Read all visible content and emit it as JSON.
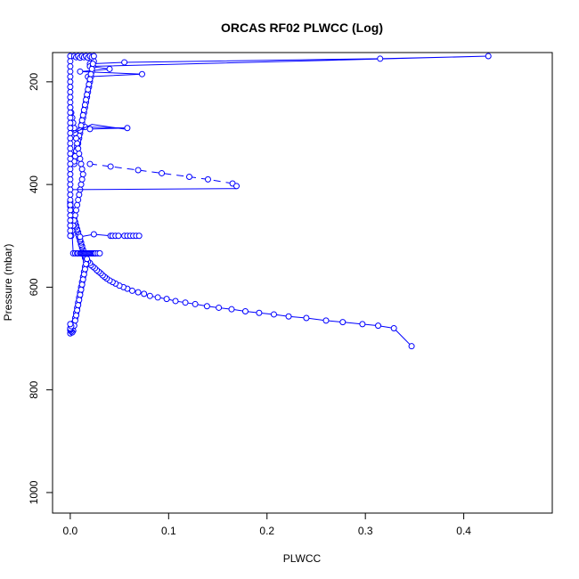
{
  "chart_data": {
    "type": "scatter",
    "title": "ORCAS RF02 PLWCC (Log)",
    "xlabel": "PLWCC",
    "ylabel": "Pressure (mbar)",
    "xlim": [
      -0.018,
      0.49
    ],
    "ylim": [
      1040,
      143
    ],
    "y_reversed": true,
    "x_ticks": [
      0.0,
      0.1,
      0.2,
      0.3,
      0.4
    ],
    "x_tick_labels": [
      "0.0",
      "0.1",
      "0.2",
      "0.3",
      "0.4"
    ],
    "y_ticks": [
      200,
      400,
      600,
      800,
      1000
    ],
    "y_tick_labels": [
      "200",
      "400",
      "600",
      "800",
      "1000"
    ],
    "grid": false,
    "legend": "none",
    "colors": {
      "series": "#0000ff",
      "axis": "#000000"
    },
    "series": [
      {
        "marker": "open-circle",
        "line": "solid",
        "x": [
          0.347,
          0.329,
          0.313,
          0.297,
          0.277,
          0.26,
          0.24,
          0.222,
          0.207,
          0.192,
          0.178,
          0.164,
          0.151,
          0.139,
          0.127,
          0.117,
          0.107,
          0.098,
          0.089,
          0.081,
          0.075,
          0.069,
          0.063,
          0.058,
          0.054,
          0.05,
          0.046,
          0.043,
          0.04,
          0.037,
          0.035,
          0.033,
          0.031,
          0.029,
          0.027,
          0.025,
          0.023,
          0.021,
          0.02,
          0.018,
          0.016,
          0.015,
          0.015,
          0.014,
          0.014,
          0.013,
          0.013,
          0.012,
          0.012,
          0.011,
          0.011,
          0.01,
          0.01,
          0.009,
          0.009,
          0.008,
          0.008,
          0.007,
          0.007,
          0.006,
          0.006,
          0.005,
          0.005,
          0.004,
          0.004,
          0.003,
          0.003,
          0.002,
          0.002,
          0.001,
          0.001,
          0.0,
          0.0,
          0.0,
          0.0,
          0.003,
          0.005,
          0.007,
          0.008,
          0.01,
          0.011,
          0.012,
          0.013,
          0.014,
          0.015,
          0.016,
          0.017,
          0.018,
          0.019,
          0.02,
          0.021,
          0.022,
          0.023,
          0.024,
          0.025,
          0.026,
          0.028,
          0.03
        ],
        "y": [
          715,
          680,
          675,
          672,
          668,
          665,
          660,
          657,
          653,
          650,
          647,
          643,
          640,
          637,
          633,
          630,
          627,
          623,
          620,
          617,
          613,
          610,
          607,
          603,
          600,
          597,
          593,
          590,
          587,
          583,
          580,
          577,
          573,
          570,
          567,
          563,
          560,
          557,
          553,
          550,
          547,
          543,
          540,
          537,
          534,
          530,
          527,
          523,
          520,
          517,
          513,
          510,
          507,
          503,
          500,
          497,
          493,
          490,
          487,
          483,
          480,
          477,
          473,
          470,
          467,
          463,
          460,
          457,
          453,
          450,
          447,
          443,
          440,
          437,
          434,
          534,
          534,
          534,
          534,
          534,
          534,
          534,
          534,
          534,
          534,
          534,
          534,
          534,
          534,
          534,
          534,
          534,
          534,
          534,
          534,
          534,
          534,
          534
        ]
      },
      {
        "marker": "open-circle",
        "line": "solid",
        "x": [
          0.0,
          0.001,
          0.003,
          0.005,
          0.006,
          0.007,
          0.008,
          0.009,
          0.01,
          0.011,
          0.012,
          0.013,
          0.014,
          0.015,
          0.016,
          0.017,
          0.016,
          0.015,
          0.014,
          0.013,
          0.012,
          0.011,
          0.01,
          0.009,
          0.008,
          0.007,
          0.006,
          0.005,
          0.004,
          0.003,
          0.002,
          0.001,
          0.0,
          0.0,
          0.0,
          0.001,
          0.0
        ],
        "y": [
          690,
          680,
          670,
          660,
          650,
          640,
          630,
          620,
          610,
          600,
          590,
          580,
          570,
          560,
          550,
          545,
          555,
          565,
          575,
          585,
          595,
          605,
          615,
          625,
          635,
          645,
          655,
          665,
          675,
          685,
          688,
          686,
          684,
          682,
          680,
          676,
          672
        ]
      },
      {
        "marker": "open-circle",
        "line": "dashed",
        "x": [
          0.02,
          0.041,
          0.069,
          0.093,
          0.121,
          0.14,
          0.165,
          0.169
        ],
        "y": [
          360,
          365,
          372,
          378,
          385,
          390,
          398,
          403
        ]
      },
      {
        "marker": "open-circle",
        "line": "solid",
        "x": [
          0.01,
          0.024,
          0.041,
          0.043,
          0.046,
          0.049,
          0.055,
          0.058,
          0.061,
          0.064,
          0.067,
          0.07
        ],
        "y": [
          502,
          497,
          500,
          500,
          500,
          500,
          500,
          500,
          500,
          500,
          500,
          500
        ]
      },
      {
        "marker": "open-circle",
        "line": "solid",
        "x": [
          0.015,
          0.058,
          0.02
        ],
        "y": [
          288,
          290,
          292
        ]
      },
      {
        "marker": "open-circle",
        "line": "solid",
        "x": [
          0.02,
          0.055,
          0.315,
          0.425,
          0.02,
          0.04,
          0.01,
          0.073,
          0.018
        ],
        "y": [
          165,
          162,
          155,
          150,
          170,
          175,
          180,
          185,
          190
        ]
      },
      {
        "marker": "open-circle",
        "line": "solid",
        "x": [
          0.004,
          0.005,
          0.006,
          0.007,
          0.008,
          0.009,
          0.01,
          0.011,
          0.012,
          0.013,
          0.014,
          0.015,
          0.016,
          0.017,
          0.018,
          0.019,
          0.02,
          0.021,
          0.022,
          0.023,
          0.024,
          0.023,
          0.022,
          0.021,
          0.02,
          0.019,
          0.018,
          0.017,
          0.016,
          0.015,
          0.014,
          0.013,
          0.012,
          0.011,
          0.01,
          0.009,
          0.008,
          0.007,
          0.006,
          0.005,
          0.004
        ],
        "y": [
          360,
          350,
          340,
          330,
          320,
          310,
          300,
          290,
          280,
          270,
          260,
          250,
          240,
          230,
          220,
          210,
          200,
          190,
          180,
          170,
          160,
          165,
          175,
          185,
          195,
          205,
          215,
          225,
          235,
          245,
          255,
          265,
          275,
          285,
          295,
          305,
          315,
          325,
          335,
          345,
          355
        ]
      },
      {
        "marker": "open-circle",
        "line": "solid",
        "x": [
          0.001,
          0.002,
          0.003,
          0.004,
          0.005,
          0.006,
          0.007,
          0.008,
          0.009,
          0.01,
          0.011,
          0.012,
          0.013,
          0.012,
          0.011,
          0.01,
          0.009,
          0.008,
          0.007,
          0.006,
          0.005,
          0.004,
          0.003,
          0.002,
          0.001,
          0.0
        ],
        "y": [
          500,
          490,
          480,
          470,
          460,
          450,
          440,
          430,
          420,
          410,
          400,
          390,
          380,
          370,
          360,
          350,
          340,
          330,
          320,
          310,
          300,
          290,
          280,
          270,
          260,
          250
        ]
      },
      {
        "marker": "open-circle",
        "line": "solid",
        "x": [
          0.0,
          0.0,
          0.0,
          0.0,
          0.0,
          0.0,
          0.0,
          0.0,
          0.0,
          0.0,
          0.0,
          0.0,
          0.0,
          0.0,
          0.0,
          0.0,
          0.0,
          0.0,
          0.0,
          0.0,
          0.0,
          0.0,
          0.0,
          0.0,
          0.0,
          0.0,
          0.0,
          0.0,
          0.0,
          0.0,
          0.0,
          0.0,
          0.0,
          0.0,
          0.0,
          0.0
        ],
        "y": [
          150,
          160,
          170,
          180,
          190,
          200,
          210,
          220,
          230,
          240,
          250,
          260,
          270,
          280,
          290,
          300,
          310,
          320,
          330,
          340,
          350,
          360,
          370,
          380,
          390,
          400,
          410,
          420,
          430,
          440,
          450,
          460,
          470,
          480,
          490,
          500
        ]
      },
      {
        "marker": "open-circle",
        "line": "solid",
        "x": [
          0.004,
          0.006,
          0.008,
          0.01,
          0.012,
          0.014,
          0.016,
          0.018,
          0.02,
          0.022,
          0.024
        ],
        "y": [
          150,
          152,
          150,
          153,
          150,
          152,
          150,
          153,
          150,
          152,
          150
        ]
      },
      {
        "marker": "none",
        "line": "solid",
        "x": [
          0.002,
          0.169
        ],
        "y": [
          410,
          408
        ]
      },
      {
        "marker": "none",
        "line": "solid",
        "x": [
          0.003,
          0.022,
          0.055
        ],
        "y": [
          300,
          283,
          292
        ]
      }
    ]
  }
}
